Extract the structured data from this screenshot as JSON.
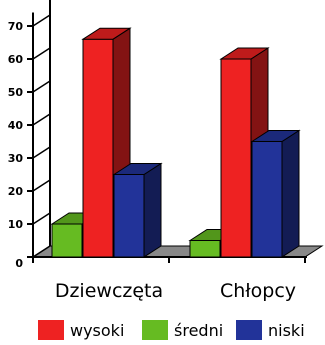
{
  "chart_data": {
    "type": "bar",
    "categories": [
      "Dziewczęta",
      "Chłopcy"
    ],
    "series": [
      {
        "name": "wysoki",
        "values": [
          66,
          60
        ],
        "color": "#ee2222"
      },
      {
        "name": "średni",
        "values": [
          10,
          5
        ],
        "color": "#66bb22"
      },
      {
        "name": "niski",
        "values": [
          25,
          35
        ],
        "color": "#223399"
      }
    ],
    "bar_order": [
      "średni",
      "wysoki",
      "niski"
    ],
    "yticks": [
      0,
      10,
      20,
      30,
      40,
      50,
      60,
      70
    ],
    "ylim": [
      0,
      75
    ],
    "grid": false,
    "legend_position": "bottom",
    "title": "",
    "xlabel": "",
    "ylabel": ""
  }
}
